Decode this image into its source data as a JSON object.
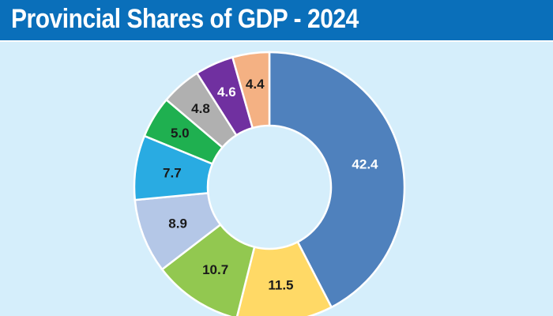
{
  "title": "Provincial Shares of GDP - 2024",
  "chart_data": {
    "type": "pie",
    "donut": true,
    "title": "Provincial Shares of GDP - 2024",
    "values": [
      42.4,
      11.5,
      10.7,
      8.9,
      7.7,
      5.0,
      4.8,
      4.6,
      4.4
    ],
    "labels": [
      "42.4",
      "11.5",
      "10.7",
      "8.9",
      "7.7",
      "5.0",
      "4.8",
      "4.6",
      "4.4"
    ],
    "colors": [
      "#4f81bd",
      "#ffd966",
      "#92c850",
      "#b4c7e7",
      "#29abe2",
      "#1fb050",
      "#b0b0b0",
      "#7030a0",
      "#f4b183"
    ],
    "label_colors": [
      "#ffffff",
      "#1a1a1a",
      "#1a1a1a",
      "#1a1a1a",
      "#1a1a1a",
      "#1a1a1a",
      "#1a1a1a",
      "#ffffff",
      "#1a1a1a"
    ],
    "start": "12 o'clock",
    "direction": "clockwise",
    "legend": "none"
  }
}
